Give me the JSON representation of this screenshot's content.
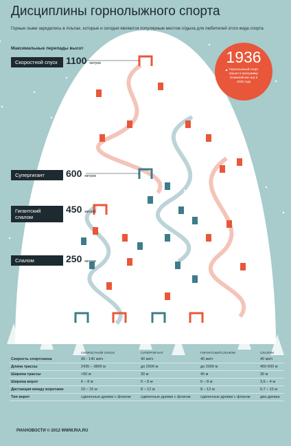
{
  "header": {
    "title": "Дисциплины горнолыжного спорта",
    "subtitle": "Горные лыжи зародились в Альпах, которые и сегодня являются популярным местом отдыха для любителей этого вида спорта"
  },
  "heights": {
    "heading": "Максимальные перепады высот",
    "items": [
      {
        "label": "Скоростной спуск",
        "value": "1100",
        "unit": "метров"
      },
      {
        "label": "Супергигант",
        "value": "600",
        "unit": "метров"
      },
      {
        "label": "Гигантский слалом",
        "value": "450",
        "unit": "метров"
      },
      {
        "label": "Слалом",
        "value": "250",
        "unit": "метров"
      }
    ]
  },
  "badge": {
    "year": "1936",
    "text": "Горнолыжный спорт вошел в программу Олимпийских игр в 1936 году"
  },
  "table": {
    "header": [
      "СКОРОСТНОЙ СПУСК",
      "СУПЕРГИГАНТ",
      "ГИГАНТСКИЙ СЛАЛОМ",
      "СЛАЛОМ"
    ],
    "rows": [
      [
        "Скорость спортсмена",
        "90 - 140 км/ч",
        "40 км/ч",
        "40 км/ч",
        "40 км/ч"
      ],
      [
        "Длина трассы",
        "2435 – 3800 м",
        "до 2500 м",
        "до 2000 м",
        "450-500 м"
      ],
      [
        "Ширина трассы",
        ">50 м",
        "30 м",
        "40 м",
        "30 м"
      ],
      [
        "Ширина ворот",
        "6 – 8 м",
        "6 – 8 м",
        "6 – 8 м",
        "3,5 – 4 м"
      ],
      [
        "Дистанция между воротами",
        "10 – 15 м",
        "8 – 12 м",
        "8 – 12 м",
        "0,7 – 15 м"
      ],
      [
        "Тип ворот",
        "сдвоенные древки с флагом",
        "сдвоенные древки с флагом",
        "сдвоенные древки с флагом",
        "два древка"
      ]
    ]
  },
  "footer": {
    "brand": "РИАНОВОСТИ",
    "copyright": "© 2012 WWW.RIA.RU"
  }
}
